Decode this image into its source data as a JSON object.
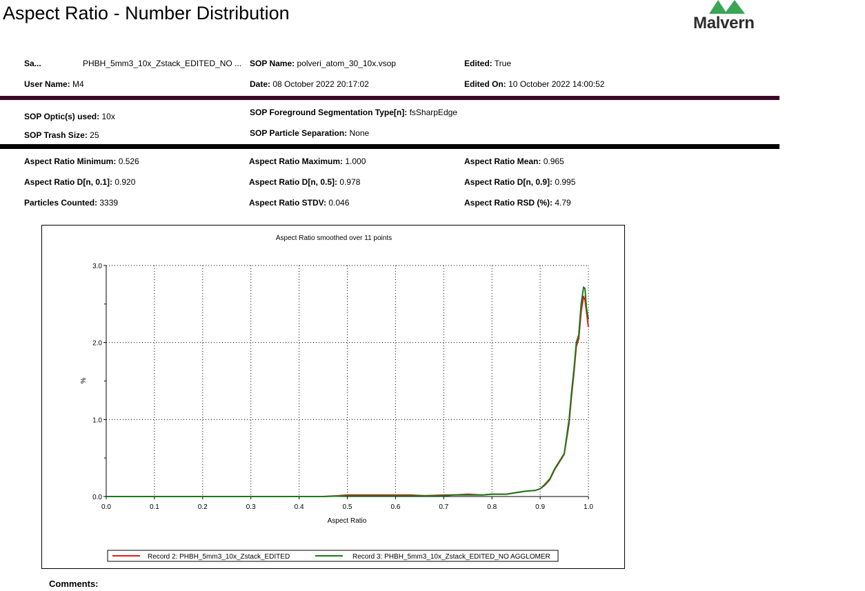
{
  "header": {
    "title": "Aspect Ratio - Number Distribution",
    "logo_text": "Malvern",
    "logo_color": "#3aa655"
  },
  "info": {
    "sample": {
      "label": "Sa...",
      "value": "PHBH_5mm3_10x_Zstack_EDITED_NO ..."
    },
    "sop_name": {
      "label": "SOP Name:",
      "value": "polveri_atom_30_10x.vsop"
    },
    "edited": {
      "label": "Edited:",
      "value": "True"
    },
    "user_name": {
      "label": "User Name:",
      "value": "M4"
    },
    "date": {
      "label": "Date:",
      "value": "08 October 2022 20:17:02"
    },
    "edited_on": {
      "label": "Edited On:",
      "value": "10 October 2022 14:00:52"
    }
  },
  "sop": {
    "optics": {
      "label": "SOP Optic(s) used:",
      "value": "10x"
    },
    "segmentation": {
      "label": "SOP Foreground Segmentation Type[n]:",
      "value": "fsSharpEdge"
    },
    "trash_size": {
      "label": "SOP Trash Size:",
      "value": "25"
    },
    "separation": {
      "label": "SOP Particle Separation:",
      "value": "None"
    }
  },
  "stats": {
    "min": {
      "label": "Aspect Ratio Minimum:",
      "value": "0.526"
    },
    "max": {
      "label": "Aspect Ratio Maximum:",
      "value": "1.000"
    },
    "mean": {
      "label": "Aspect Ratio Mean:",
      "value": "0.965"
    },
    "d01": {
      "label": "Aspect Ratio D[n, 0.1]:",
      "value": "0.920"
    },
    "d05": {
      "label": "Aspect Ratio D[n, 0.5]:",
      "value": "0.978"
    },
    "d09": {
      "label": "Aspect Ratio D[n, 0.9]:",
      "value": "0.995"
    },
    "count": {
      "label": "Particles Counted:",
      "value": "3339"
    },
    "stdv": {
      "label": "Aspect Ratio STDV:",
      "value": "0.046"
    },
    "rsd": {
      "label": "Aspect Ratio RSD (%):",
      "value": "4.79"
    }
  },
  "comments_label": "Comments:",
  "chart_data": {
    "type": "line",
    "title": "Aspect Ratio smoothed over 11 points",
    "xlabel": "Aspect Ratio",
    "ylabel": "%",
    "xlim": [
      0.0,
      1.0
    ],
    "ylim": [
      0.0,
      3.0
    ],
    "x_ticks": [
      "0.0",
      "0.1",
      "0.2",
      "0.3",
      "0.4",
      "0.5",
      "0.6",
      "0.7",
      "0.8",
      "0.9",
      "1.0"
    ],
    "y_ticks": [
      "0.0",
      "1.0",
      "2.0",
      "3.0"
    ],
    "grid": true,
    "legend_position": "bottom",
    "series": [
      {
        "name": "Record 2: PHBH_5mm3_10x_Zstack_EDITED",
        "color": "#e31a1c",
        "x": [
          0.0,
          0.45,
          0.48,
          0.5,
          0.52,
          0.55,
          0.58,
          0.6,
          0.63,
          0.66,
          0.7,
          0.72,
          0.75,
          0.78,
          0.8,
          0.83,
          0.85,
          0.87,
          0.89,
          0.9,
          0.91,
          0.92,
          0.93,
          0.94,
          0.95,
          0.96,
          0.965,
          0.97,
          0.975,
          0.98,
          0.985,
          0.99,
          0.993,
          0.996,
          1.0
        ],
        "y": [
          0.0,
          0.0,
          0.01,
          0.02,
          0.02,
          0.02,
          0.02,
          0.02,
          0.02,
          0.01,
          0.02,
          0.02,
          0.03,
          0.02,
          0.03,
          0.03,
          0.05,
          0.07,
          0.08,
          0.1,
          0.15,
          0.22,
          0.35,
          0.45,
          0.55,
          0.95,
          1.3,
          1.6,
          1.95,
          2.05,
          2.4,
          2.6,
          2.55,
          2.4,
          2.2
        ]
      },
      {
        "name": "Record 3: PHBH_5mm3_10x_Zstack_EDITED_NO AGGLOMER",
        "color": "#1a7a1a",
        "x": [
          0.0,
          0.45,
          0.48,
          0.5,
          0.52,
          0.55,
          0.58,
          0.6,
          0.63,
          0.66,
          0.7,
          0.72,
          0.75,
          0.78,
          0.8,
          0.83,
          0.85,
          0.87,
          0.89,
          0.9,
          0.91,
          0.92,
          0.93,
          0.94,
          0.95,
          0.96,
          0.965,
          0.97,
          0.975,
          0.98,
          0.985,
          0.99,
          0.993,
          0.996,
          1.0
        ],
        "y": [
          0.0,
          0.0,
          0.005,
          0.01,
          0.01,
          0.01,
          0.01,
          0.01,
          0.01,
          0.01,
          0.01,
          0.02,
          0.02,
          0.02,
          0.03,
          0.03,
          0.05,
          0.07,
          0.08,
          0.1,
          0.16,
          0.23,
          0.36,
          0.46,
          0.56,
          1.0,
          1.35,
          1.65,
          2.0,
          2.1,
          2.5,
          2.72,
          2.7,
          2.45,
          2.3
        ]
      }
    ]
  }
}
